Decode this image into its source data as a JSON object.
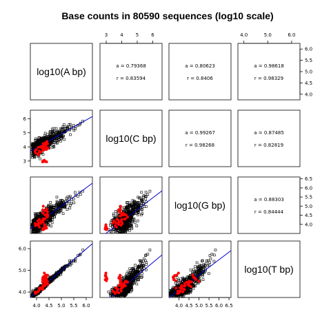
{
  "chart_data": {
    "type": "scatter",
    "title": "Base counts in 80590 sequences (log10 scale)",
    "variables": [
      "log10(A bp)",
      "log10(C bp)",
      "log10(G bp)",
      "log10(T bp)"
    ],
    "ranges": [
      [
        3.75,
        6.25
      ],
      [
        2.6,
        6.6
      ],
      [
        3.5,
        6.6
      ],
      [
        3.75,
        6.35
      ]
    ],
    "ticks": [
      [
        4.0,
        4.5,
        5.0,
        5.5,
        6.0
      ],
      [
        3,
        4,
        5,
        6
      ],
      [
        4.0,
        4.5,
        5.0,
        5.5,
        6.0,
        6.5
      ],
      [
        4.0,
        5.0,
        6.0
      ]
    ],
    "tick_labels": [
      [
        "4.0",
        "4.5",
        "5.0",
        "5.5",
        "6.0"
      ],
      [
        "3",
        "4",
        "5",
        "6"
      ],
      [
        "4.0",
        "4.5",
        "5.0",
        "5.5",
        "6.0",
        "6.5"
      ],
      [
        "4.0",
        "5.0",
        "6.0"
      ]
    ],
    "correlations": [
      {
        "row": 0,
        "col": 1,
        "a": "a = 0.79368",
        "r": "r = 0.83594"
      },
      {
        "row": 0,
        "col": 2,
        "a": "a = 0.80623",
        "r": "r = 0.8406"
      },
      {
        "row": 0,
        "col": 3,
        "a": "a = 0.98618",
        "r": "r = 0.98329"
      },
      {
        "row": 1,
        "col": 2,
        "a": "a = 0.99267",
        "r": "r = 0.98268"
      },
      {
        "row": 1,
        "col": 3,
        "a": "a = 0.87485",
        "r": "r = 0.82819"
      },
      {
        "row": 2,
        "col": 3,
        "a": "a = 0.88303",
        "r": "r = 0.84444"
      }
    ],
    "highlight_color": "#ff0000",
    "point_color": "#000000",
    "fit_line_color": "#0000cc",
    "outlier_clusters": [
      {
        "C": 3.0,
        "G": 3.85
      },
      {
        "C": 3.9,
        "G": 4.8
      }
    ]
  }
}
